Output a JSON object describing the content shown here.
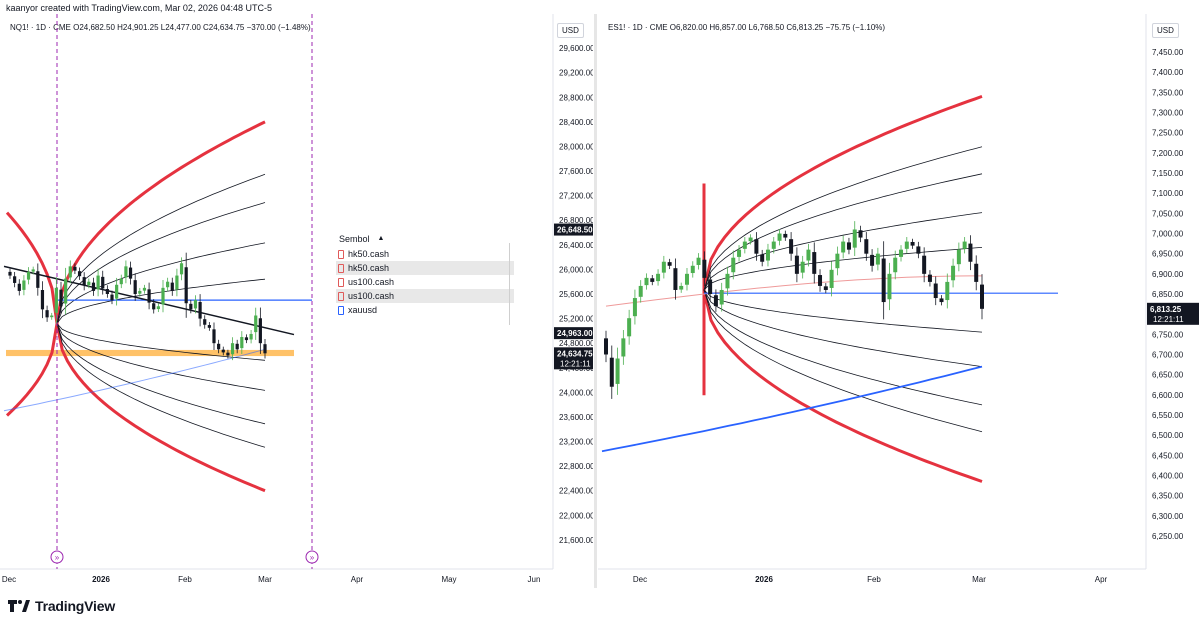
{
  "caption": "kaanyor created with TradingView.com, Mar 02, 2026 04:48 UTC-5",
  "brand": "TradingView",
  "panes": [
    {
      "id": "left",
      "legend": "NQ1! · 1D · CME  O24,682.50  H24,901.25  L24,477.00  C24,634.75  −370.00 (−1.48%)",
      "currency": "USD",
      "price_ticks": [
        "29,600.00",
        "29,200.00",
        "28,800.00",
        "28,400.00",
        "28,000.00",
        "27,600.00",
        "27,200.00",
        "26,800.00",
        "26,400.00",
        "26,000.00",
        "25,600.00",
        "25,200.00",
        "24,800.00",
        "24,400.00",
        "24,000.00",
        "23,600.00",
        "23,200.00",
        "22,800.00",
        "22,400.00",
        "22,000.00",
        "21,600.00"
      ],
      "date_ticks": [
        "Dec",
        "2026",
        "Feb",
        "Mar",
        "Apr",
        "May",
        "Jun"
      ],
      "price_badges": [
        {
          "text": "26,648.50",
          "value": 26648.5,
          "bg": "#131722"
        },
        {
          "text": "24,963.00",
          "value": 24963,
          "bg": "#131722"
        },
        {
          "text": "24,634.75",
          "value": 24634.75,
          "bg": "#131722",
          "sub": "12:21:11"
        }
      ]
    },
    {
      "id": "right",
      "legend": "ES1! · 1D · CME  O6,820.00  H6,857.00  L6,768.50  C6,813.25  −75.75 (−1.10%)",
      "currency": "USD",
      "price_ticks": [
        "7,450.00",
        "7,400.00",
        "7,350.00",
        "7,300.00",
        "7,250.00",
        "7,200.00",
        "7,150.00",
        "7,100.00",
        "7,050.00",
        "7,000.00",
        "6,950.00",
        "6,900.00",
        "6,850.00",
        "6,800.00",
        "6,750.00",
        "6,700.00",
        "6,650.00",
        "6,600.00",
        "6,550.00",
        "6,500.00",
        "6,450.00",
        "6,400.00",
        "6,350.00",
        "6,300.00",
        "6,250.00"
      ],
      "date_ticks": [
        "Dec",
        "2026",
        "Feb",
        "Mar",
        "Apr"
      ],
      "price_badges": [
        {
          "text": "6,813.25",
          "value": 6813.25,
          "bg": "#131722",
          "sub": "12:21:11"
        }
      ]
    }
  ],
  "symbol_panel": {
    "header": "Sembol",
    "sort_icon": "sort-up-icon",
    "rows": [
      {
        "name": "hk50.cash",
        "highlight": false,
        "icon_color": "#e05a5a"
      },
      {
        "name": "hk50.cash",
        "highlight": true,
        "icon_color": "#e05a5a"
      },
      {
        "name": "us100.cash",
        "highlight": false,
        "icon_color": "#e05a5a"
      },
      {
        "name": "us100.cash",
        "highlight": true,
        "icon_color": "#e05a5a"
      },
      {
        "name": "xauusd",
        "highlight": false,
        "icon_color": "#2962ff"
      }
    ]
  },
  "colors": {
    "up": "#26a69a",
    "up_alt": "#4caf50",
    "down": "#131722",
    "parabola_outer": "#e5323f",
    "ma_blue": "#2962ff",
    "horizontal_line": "#2962ff",
    "zone": "#ffb74d"
  },
  "chart_data": [
    {
      "type": "candlestick",
      "symbol": "NQ1!",
      "interval": "1D",
      "exchange": "CME",
      "ohlc_last": {
        "open": 24682.5,
        "high": 24901.25,
        "low": 24477.0,
        "close": 24634.75,
        "change": -370.0,
        "change_pct": -1.48
      },
      "ylim": [
        21500,
        29700
      ],
      "x_ticks": [
        "Dec",
        "2026",
        "Feb",
        "Mar",
        "Apr",
        "May",
        "Jun"
      ],
      "horizontal_line": 25500,
      "support_zone": [
        24590,
        24690
      ],
      "trendline": [
        [
          0.0,
          26050
        ],
        [
          1.0,
          24940
        ]
      ],
      "close_series": [
        25900,
        25780,
        25650,
        25820,
        25960,
        26000,
        25700,
        25350,
        25220,
        25250,
        25700,
        25400,
        25850,
        26050,
        25980,
        25890,
        25740,
        25800,
        25650,
        25900,
        25690,
        25600,
        25500,
        25750,
        25850,
        26050,
        25850,
        25600,
        25650,
        25700,
        25460,
        25350,
        25400,
        25700,
        25800,
        25650,
        25900,
        26100,
        25450,
        25350,
        25500,
        25200,
        25100,
        25050,
        24800,
        24700,
        24650,
        24600,
        24800,
        24700,
        24900,
        24850,
        24950,
        25250,
        24800,
        24634.75
      ],
      "parabola_fan": {
        "vertex_price": 25120,
        "outer_top": 28400,
        "outer_bottom": 22400
      },
      "moving_average": {
        "from": 23700,
        "to": 24700
      }
    },
    {
      "type": "candlestick",
      "symbol": "ES1!",
      "interval": "1D",
      "exchange": "CME",
      "ohlc_last": {
        "open": 6820.0,
        "high": 6857.0,
        "low": 6768.5,
        "close": 6813.25,
        "change": -75.75,
        "change_pct": -1.1
      },
      "ylim": [
        6225,
        7475
      ],
      "x_ticks": [
        "Dec",
        "2026",
        "Feb",
        "Mar",
        "Apr"
      ],
      "horizontal_line": 6852,
      "close_series": [
        6700,
        6620,
        6690,
        6740,
        6790,
        6840,
        6870,
        6890,
        6880,
        6900,
        6930,
        6920,
        6860,
        6870,
        6900,
        6920,
        6940,
        6890,
        6850,
        6820,
        6860,
        6900,
        6940,
        6960,
        6980,
        6990,
        6950,
        6930,
        6960,
        6980,
        7000,
        6990,
        6950,
        6900,
        6930,
        6960,
        6900,
        6870,
        6860,
        6910,
        6950,
        6980,
        6960,
        7010,
        6990,
        6950,
        6920,
        6950,
        6830,
        6900,
        6940,
        6960,
        6980,
        6970,
        6950,
        6900,
        6880,
        6840,
        6830,
        6880,
        6920,
        6960,
        6980,
        6930,
        6880,
        6813.25
      ],
      "parabola_fan": {
        "vertex_price": 6860,
        "outer_top": 7340,
        "outer_bottom": 6385
      },
      "moving_average": {
        "from": 6460,
        "to": 6670
      },
      "ema": {
        "from": 6820,
        "to": 6895
      }
    }
  ]
}
